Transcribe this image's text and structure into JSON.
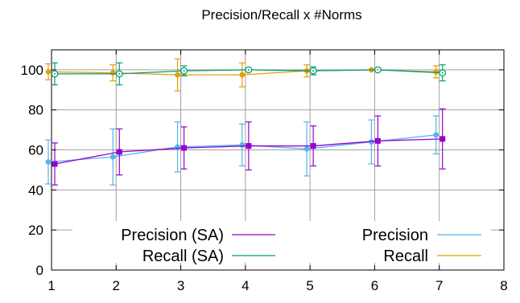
{
  "chart_data": {
    "type": "line",
    "title": "Precision/Recall x #Norms",
    "xlabel": "",
    "ylabel": "",
    "xlim": [
      1,
      8
    ],
    "ylim": [
      0,
      110
    ],
    "x_ticks": [
      1,
      2,
      3,
      4,
      5,
      6,
      7,
      8
    ],
    "y_ticks": [
      0,
      20,
      40,
      60,
      80,
      100
    ],
    "grid": true,
    "error_bars": true,
    "legend_placement": "bottom",
    "series": [
      {
        "name": "Precision (SA)",
        "color": "#9400d3",
        "marker": "filled-square",
        "x": [
          1.05,
          2.05,
          3.05,
          4.05,
          5.05,
          6.05,
          7.05
        ],
        "y": [
          53,
          59,
          61,
          62,
          62,
          64.5,
          65.5
        ],
        "err": [
          10.5,
          11.5,
          10.5,
          12,
          10,
          12.5,
          15
        ]
      },
      {
        "name": "Recall (SA)",
        "color": "#009e73",
        "marker": "open-circle",
        "x": [
          1.05,
          2.05,
          3.05,
          4.05,
          5.05,
          6.05,
          7.05
        ],
        "y": [
          98,
          98,
          99.5,
          100,
          99.5,
          100,
          98.5
        ],
        "err": [
          5.5,
          5.5,
          2.5,
          0,
          2,
          0,
          4
        ]
      },
      {
        "name": "Precision",
        "color": "#56b4e9",
        "marker": "filled-circle",
        "x": [
          0.95,
          1.95,
          2.95,
          3.95,
          4.95,
          5.95,
          6.95
        ],
        "y": [
          54,
          56.5,
          61.5,
          62.5,
          60.5,
          64,
          67.5
        ],
        "err": [
          11,
          14,
          12.5,
          10.5,
          13.5,
          11,
          9.5
        ]
      },
      {
        "name": "Recall",
        "color": "#e69f00",
        "marker": "filled-circle",
        "x": [
          0.95,
          1.95,
          2.95,
          3.95,
          4.95,
          5.95,
          6.95
        ],
        "y": [
          99,
          98.5,
          97.5,
          97.5,
          99.5,
          100,
          99
        ],
        "err": [
          4,
          4,
          8,
          6,
          3,
          0,
          3
        ]
      }
    ]
  }
}
